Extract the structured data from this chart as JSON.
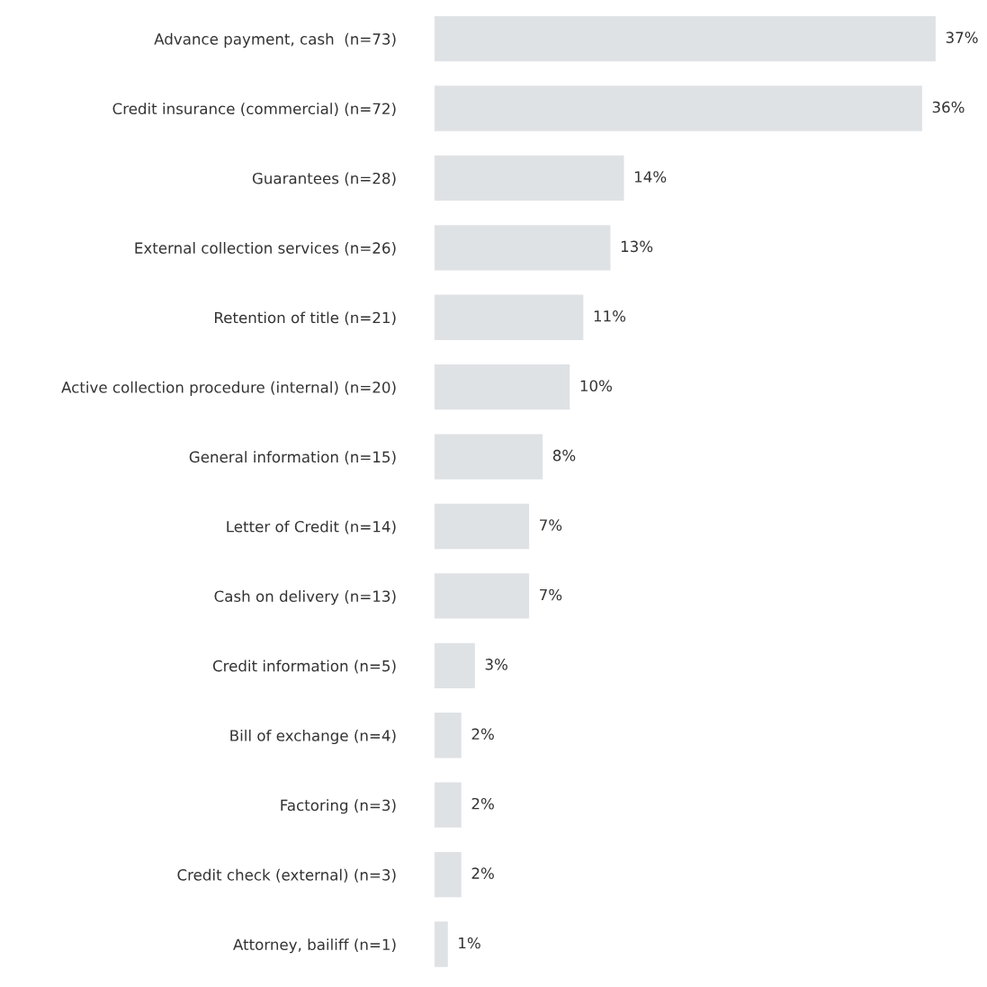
{
  "chart_data": {
    "type": "bar",
    "orientation": "horizontal",
    "categories": [
      "Advance payment, cash  (n=73)",
      "Credit insurance (commercial) (n=72)",
      "Guarantees (n=28)",
      "External collection services (n=26)",
      "Retention of title (n=21)",
      "Active collection procedure (internal) (n=20)",
      "General information (n=15)",
      "Letter of Credit (n=14)",
      "Cash on delivery (n=13)",
      "Credit information (n=5)",
      "Bill of exchange (n=4)",
      "Factoring (n=3)",
      "Credit check (external) (n=3)",
      "Attorney, bailiff (n=1)"
    ],
    "values": [
      37,
      36,
      14,
      13,
      11,
      10,
      8,
      7,
      7,
      3,
      2,
      2,
      2,
      1
    ],
    "value_labels": [
      "37%",
      "36%",
      "14%",
      "13%",
      "11%",
      "10%",
      "8%",
      "7%",
      "7%",
      "3%",
      "2%",
      "2%",
      "2%",
      "1%"
    ],
    "color": "#dfe2e5"
  }
}
